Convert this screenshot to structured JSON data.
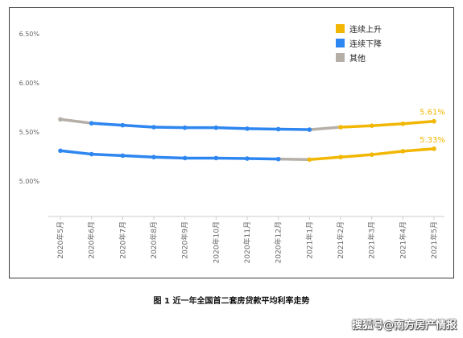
{
  "chart_data": {
    "type": "line",
    "categories": [
      "2020年5月",
      "2020年6月",
      "2020年7月",
      "2020年8月",
      "2020年9月",
      "2020年10月",
      "2020年11月",
      "2020年12月",
      "2021年1月",
      "2021年2月",
      "2021年3月",
      "2021年4月",
      "2021年5月"
    ],
    "y_ticks": [
      "6.50%",
      "6.00%",
      "5.50%",
      "5.00%"
    ],
    "ylim": [
      4.64,
      6.6
    ],
    "grid": false,
    "legend_position": "top-right",
    "legend": [
      {
        "label": "连续上升",
        "color": "#F2B705"
      },
      {
        "label": "连续下降",
        "color": "#2E86F0"
      },
      {
        "label": "其他",
        "color": "#B5AFA8"
      }
    ],
    "series": [
      {
        "values": [
          5.63,
          5.59,
          5.57,
          5.55,
          5.545,
          5.545,
          5.535,
          5.53,
          5.525,
          5.55,
          5.565,
          5.585,
          5.61
        ],
        "end_label": "5.61%"
      },
      {
        "values": [
          5.31,
          5.275,
          5.26,
          5.245,
          5.235,
          5.235,
          5.23,
          5.225,
          5.22,
          5.245,
          5.27,
          5.305,
          5.33
        ],
        "end_label": "5.33%"
      }
    ],
    "segment_colors": [
      "#B5AFA8",
      "#2E86F0",
      "#2E86F0",
      "#2E86F0",
      "#2E86F0",
      "#2E86F0",
      "#2E86F0",
      "#2E86F0",
      "#B5AFA8",
      "#F2B705",
      "#F2B705",
      "#F2B705"
    ],
    "segment_colors_series2": [
      "#2E86F0",
      "#2E86F0",
      "#2E86F0",
      "#2E86F0",
      "#2E86F0",
      "#2E86F0",
      "#2E86F0",
      "#B5AFA8",
      "#F2B705",
      "#F2B705",
      "#F2B705",
      "#F2B705"
    ],
    "point_colors": [
      "#B5AFA8",
      "#2E86F0",
      "#2E86F0",
      "#2E86F0",
      "#2E86F0",
      "#2E86F0",
      "#2E86F0",
      "#2E86F0",
      "#2E86F0",
      "#F2B705",
      "#F2B705",
      "#F2B705",
      "#F2B705"
    ],
    "point_colors_series2": [
      "#2E86F0",
      "#2E86F0",
      "#2E86F0",
      "#2E86F0",
      "#2E86F0",
      "#2E86F0",
      "#2E86F0",
      "#2E86F0",
      "#F2B705",
      "#F2B705",
      "#F2B705",
      "#F2B705",
      "#F2B705"
    ],
    "colors": {
      "up": "#F2B705",
      "down": "#2E86F0",
      "other": "#B5AFA8",
      "label": "#F2B705",
      "tick": "#666666",
      "axis": "#cccccc"
    }
  },
  "caption": "图 1 近一年全国首二套房贷款平均利率走势",
  "watermark": "搜狐号@南方房产情报"
}
